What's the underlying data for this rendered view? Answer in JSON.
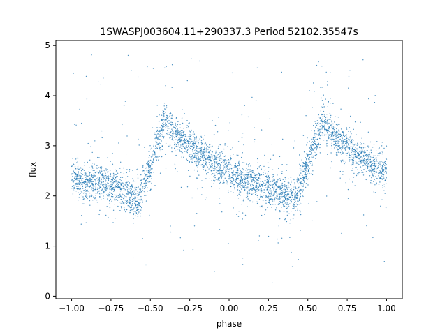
{
  "chart_data": {
    "type": "scatter",
    "title": "1SWASPJ003604.11+290337.3 Period 52102.35547s",
    "xlabel": "phase",
    "ylabel": "flux",
    "xlim": [
      -1.1,
      1.1
    ],
    "ylim": [
      -0.05,
      5.1
    ],
    "x_ticks": [
      -1.0,
      -0.75,
      -0.5,
      -0.25,
      0.0,
      0.25,
      0.5,
      0.75,
      1.0
    ],
    "x_tick_labels": [
      "−1.00",
      "−0.75",
      "−0.50",
      "−0.25",
      "0.00",
      "0.25",
      "0.50",
      "0.75",
      "1.00"
    ],
    "y_ticks": [
      0,
      1,
      2,
      3,
      4,
      5
    ],
    "y_tick_labels": [
      "0",
      "1",
      "2",
      "3",
      "4",
      "5"
    ],
    "grid": false,
    "legend": "none",
    "marker_color": "#1f77b4",
    "series": [
      {
        "description_of_shape": "phase-folded light curve, two cycles over phase -1..1",
        "x": [
          -1.0,
          -0.9,
          -0.8,
          -0.7,
          -0.62,
          -0.58,
          -0.5,
          -0.45,
          -0.41,
          -0.35,
          -0.25,
          -0.1,
          0.0,
          0.1,
          0.2,
          0.3,
          0.38,
          0.42,
          0.5,
          0.55,
          0.59,
          0.65,
          0.75,
          0.9,
          1.0
        ],
        "y": [
          2.35,
          2.3,
          2.25,
          2.15,
          2.0,
          1.9,
          2.6,
          3.1,
          3.5,
          3.25,
          3.0,
          2.65,
          2.45,
          2.3,
          2.2,
          2.1,
          2.0,
          1.95,
          2.65,
          3.1,
          3.5,
          3.25,
          3.0,
          2.65,
          2.45
        ]
      }
    ]
  }
}
